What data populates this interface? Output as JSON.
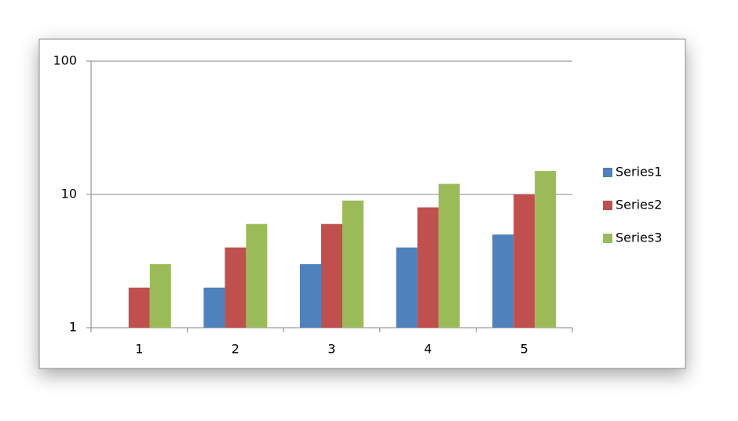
{
  "chart_data": {
    "type": "bar",
    "categories": [
      "1",
      "2",
      "3",
      "4",
      "5"
    ],
    "series": [
      {
        "name": "Series1",
        "color": "#4f81bd",
        "values": [
          1,
          2,
          3,
          4,
          5
        ]
      },
      {
        "name": "Series2",
        "color": "#c0504d",
        "values": [
          2,
          4,
          6,
          8,
          10
        ]
      },
      {
        "name": "Series3",
        "color": "#9bbb59",
        "values": [
          3,
          6,
          9,
          12,
          15
        ]
      }
    ],
    "log_y": true,
    "ylim": [
      1,
      100
    ],
    "yticks": [
      1,
      10,
      100
    ],
    "grid": true,
    "legend": "right"
  }
}
